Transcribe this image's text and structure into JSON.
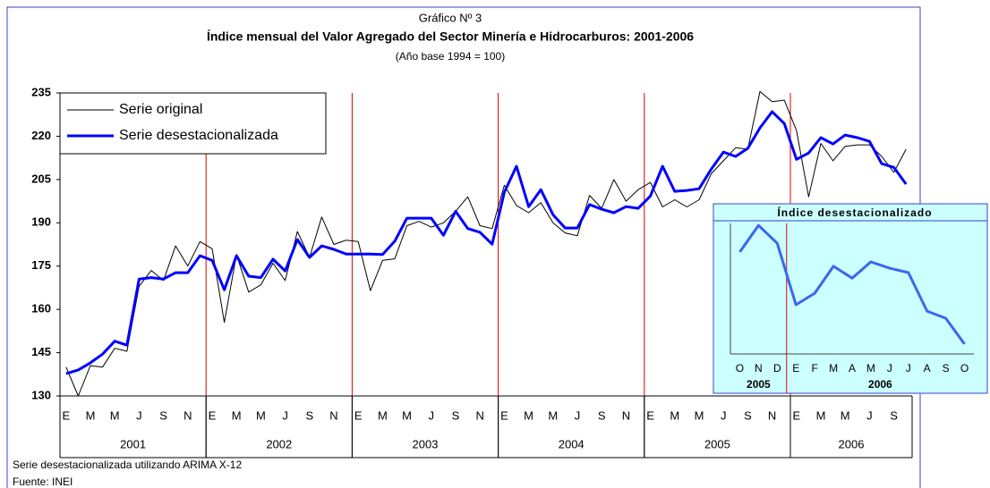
{
  "chart_data": [
    {
      "type": "line",
      "title": "Gráfico Nº 3",
      "subtitle": "Índice mensual del Valor Agregado del Sector Minería e Hidrocarburos: 2001-2006",
      "note": "(Año base 1994 = 100)",
      "footnotes": [
        "Serie desestacionalizada utilizando ARIMA X-12",
        "Fuente: INEI"
      ],
      "categories": [
        "E",
        null,
        "M",
        null,
        "M",
        null,
        "J",
        null,
        "S",
        null,
        "N",
        null,
        "E",
        null,
        "M",
        null,
        "M",
        null,
        "J",
        null,
        "S",
        null,
        "N",
        null,
        "E",
        null,
        "M",
        null,
        "M",
        null,
        "J",
        null,
        "S",
        null,
        "N",
        null,
        "E",
        null,
        "M",
        null,
        "M",
        null,
        "J",
        null,
        "S",
        null,
        "N",
        null,
        "E",
        null,
        "M",
        null,
        "M",
        null,
        "J",
        null,
        "S",
        null,
        "N",
        null,
        "E",
        null,
        "M",
        null,
        "M",
        null,
        "J",
        null,
        "S",
        null
      ],
      "year_groups": [
        {
          "label": "2001",
          "months": 12
        },
        {
          "label": "2002",
          "months": 12
        },
        {
          "label": "2003",
          "months": 12
        },
        {
          "label": "2004",
          "months": 12
        },
        {
          "label": "2005",
          "months": 12
        },
        {
          "label": "2006",
          "months": 10
        }
      ],
      "ylim": [
        130,
        235
      ],
      "yticks": [
        130,
        145,
        160,
        175,
        190,
        205,
        220,
        235
      ],
      "legend": "upper left",
      "series": [
        {
          "name": "Serie original",
          "color": "#000000",
          "values": [
            140,
            130,
            140.5,
            140,
            146.5,
            145.5,
            168,
            173.5,
            170,
            182,
            175,
            183.5,
            181,
            155.5,
            179,
            166,
            168.5,
            176,
            170,
            187,
            178,
            192,
            182.5,
            184,
            183.5,
            166.5,
            177,
            177.5,
            189,
            190.5,
            188.5,
            190,
            194,
            199,
            189,
            188,
            203,
            196,
            193.5,
            197,
            190,
            186.5,
            185.5,
            199.5,
            195,
            205,
            197.5,
            201.5,
            204,
            195.5,
            198,
            195.5,
            198,
            207,
            211.5,
            216,
            215.5,
            235.5,
            232,
            232.5,
            222,
            199,
            217.5,
            211.5,
            216.5,
            217,
            217,
            213,
            207.5,
            215.5
          ]
        },
        {
          "name": "Serie desestacionalizada",
          "color": "#0000ff",
          "values": [
            137.7,
            139,
            141.5,
            144.5,
            149,
            147.6,
            170.5,
            171,
            170.5,
            172.7,
            172.7,
            178.6,
            177,
            166.8,
            178.6,
            171.5,
            171,
            177.4,
            173.3,
            184.2,
            178,
            182,
            180.8,
            179.2,
            179.2,
            179.2,
            179,
            183.6,
            191.6,
            191.6,
            191.6,
            185.7,
            194,
            188,
            186.7,
            182.6,
            200.6,
            209.6,
            195.6,
            201.5,
            192.8,
            188.2,
            188.2,
            196.3,
            194.7,
            193.5,
            195.6,
            195,
            199.3,
            209.6,
            200.9,
            201.2,
            201.8,
            208.6,
            214.5,
            213,
            215.8,
            222.9,
            228.5,
            224.4,
            212,
            214.2,
            219.5,
            217.3,
            220.4,
            219.5,
            218.2,
            210.5,
            209.2,
            203.4
          ]
        }
      ]
    },
    {
      "type": "line",
      "title": "Índice desestacionalizado",
      "categories": [
        "O",
        "N",
        "D",
        "E",
        "F",
        "M",
        "A",
        "M",
        "J",
        "J",
        "A",
        "S",
        "O"
      ],
      "year_groups": [
        {
          "label": "2005",
          "months": 3
        },
        {
          "label": "2006",
          "months": 10
        }
      ],
      "ylim": [
        200,
        232
      ],
      "color": "#3a66ee",
      "values": [
        224.8,
        231.5,
        227,
        211.5,
        214.4,
        221.2,
        218.2,
        222.3,
        220.7,
        219.6,
        209.9,
        208.1,
        201.6
      ]
    }
  ]
}
